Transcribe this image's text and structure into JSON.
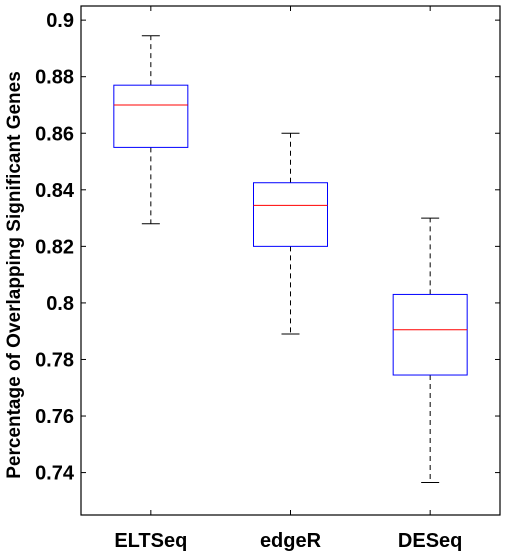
{
  "chart_data": {
    "type": "box",
    "title": "",
    "xlabel": "",
    "ylabel": "Percentage of Overlapping Significant Genes",
    "ylim": [
      0.725,
      0.905
    ],
    "yticks": [
      "0.74",
      "0.76",
      "0.78",
      "0.8",
      "0.82",
      "0.84",
      "0.86",
      "0.88",
      "0.9"
    ],
    "yticks_values": [
      0.74,
      0.76,
      0.78,
      0.8,
      0.82,
      0.84,
      0.86,
      0.88,
      0.9
    ],
    "categories": [
      "ELTSeq",
      "edgeR",
      "DESeq"
    ],
    "boxes": [
      {
        "name": "ELTSeq",
        "whisker_low": 0.828,
        "q1": 0.855,
        "median": 0.87,
        "q3": 0.877,
        "whisker_high": 0.8945
      },
      {
        "name": "edgeR",
        "whisker_low": 0.789,
        "q1": 0.82,
        "median": 0.8345,
        "q3": 0.8425,
        "whisker_high": 0.86
      },
      {
        "name": "DESeq",
        "whisker_low": 0.7365,
        "q1": 0.7745,
        "median": 0.7905,
        "q3": 0.803,
        "whisker_high": 0.83
      }
    ],
    "grid": false,
    "legend": "none",
    "colors": {
      "box": "#0000ff",
      "median": "#ff0000",
      "whisker": "#000000",
      "axes": "#000000"
    }
  }
}
